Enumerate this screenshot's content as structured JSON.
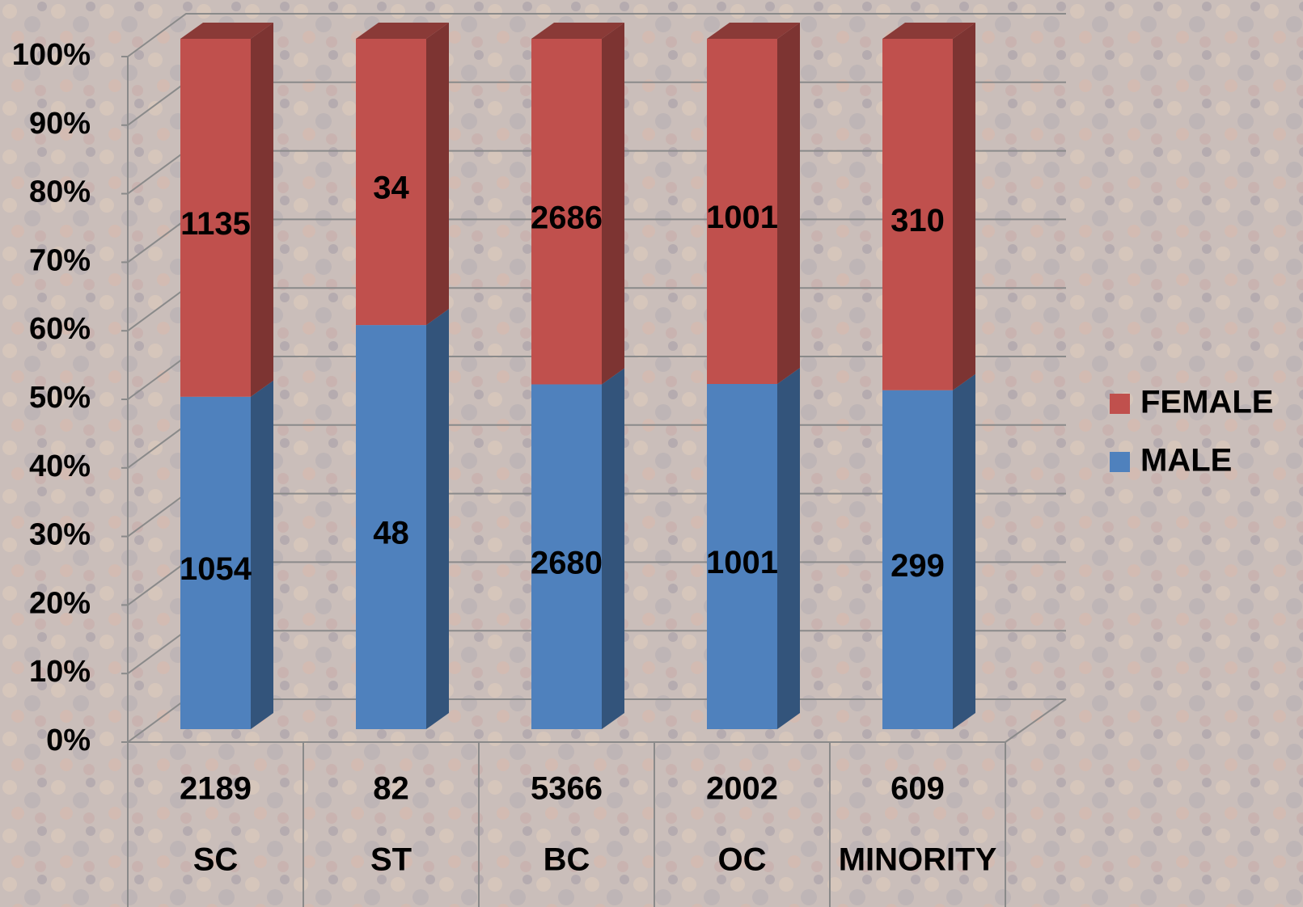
{
  "chart_data": {
    "type": "bar",
    "stacking": "percent",
    "categories": [
      "SC",
      "ST",
      "BC",
      "OC",
      "MINORITY"
    ],
    "category_totals": [
      2189,
      82,
      5366,
      2002,
      609
    ],
    "series": [
      {
        "name": "MALE",
        "color": "#4f81bd",
        "values": [
          1054,
          48,
          2680,
          1001,
          299
        ]
      },
      {
        "name": "FEMALE",
        "color": "#c0504d",
        "values": [
          1135,
          34,
          2686,
          1001,
          310
        ]
      }
    ],
    "ylim": [
      0,
      100
    ],
    "yticks": [
      {
        "value": 0,
        "label": "0%"
      },
      {
        "value": 10,
        "label": "10%"
      },
      {
        "value": 20,
        "label": "20%"
      },
      {
        "value": 30,
        "label": "30%"
      },
      {
        "value": 40,
        "label": "40%"
      },
      {
        "value": 50,
        "label": "50%"
      },
      {
        "value": 60,
        "label": "60%"
      },
      {
        "value": 70,
        "label": "70%"
      },
      {
        "value": 80,
        "label": "80%"
      },
      {
        "value": 90,
        "label": "90%"
      },
      {
        "value": 100,
        "label": "100%"
      }
    ],
    "grid": true,
    "legend": "right"
  }
}
